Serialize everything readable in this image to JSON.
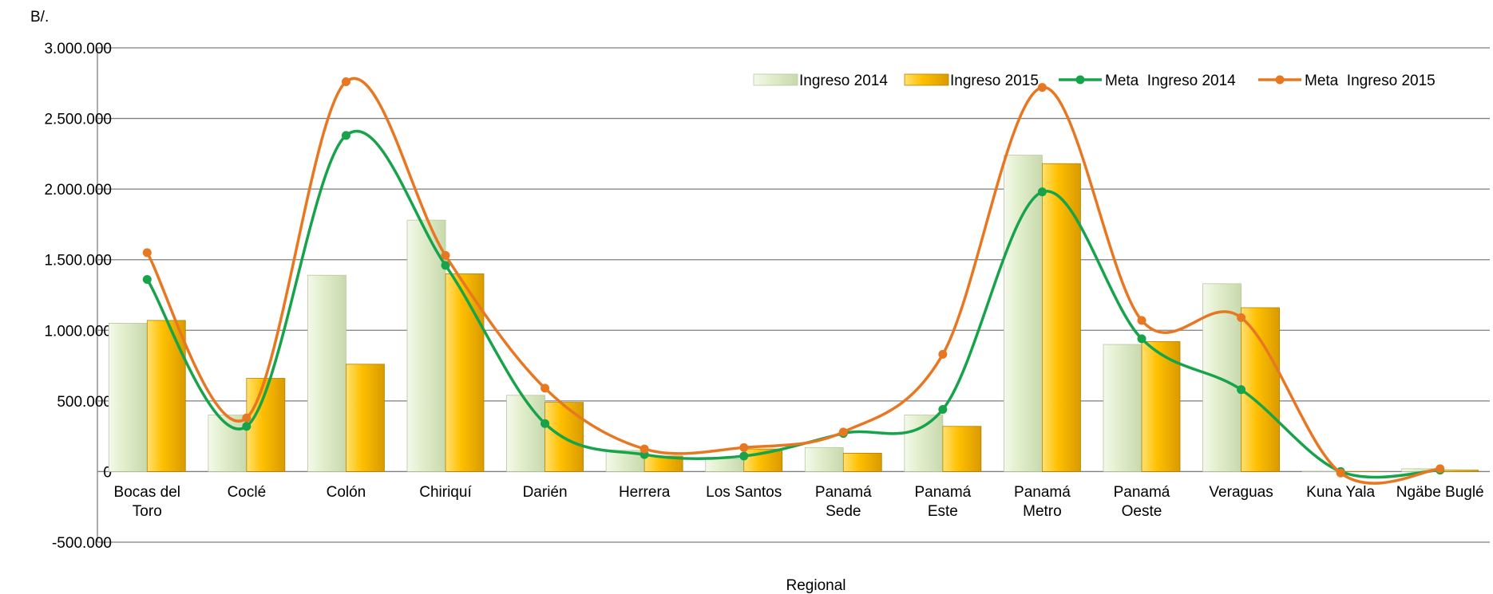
{
  "chart_data": {
    "type": "bar",
    "ylabel": "B/.",
    "xlabel": "Regional",
    "ylim": [
      -500000,
      3000000
    ],
    "yticks": [
      -500000,
      0,
      500000,
      1000000,
      1500000,
      2000000,
      2500000,
      3000000
    ],
    "ytick_labels": [
      "-500.000",
      "0",
      "500.000",
      "1.000.000",
      "1.500.000",
      "2.000.000",
      "2.500.000",
      "3.000.000"
    ],
    "grid": true,
    "legend_position": "top-right",
    "categories": [
      [
        "Bocas del",
        "Toro"
      ],
      [
        "Coclé"
      ],
      [
        "Colón"
      ],
      [
        "Chiriquí"
      ],
      [
        "Darién"
      ],
      [
        "Herrera"
      ],
      [
        "Los Santos"
      ],
      [
        "Panamá",
        "Sede"
      ],
      [
        "Panamá",
        "Este"
      ],
      [
        "Panamá",
        "Metro"
      ],
      [
        "Panamá",
        "Oeste"
      ],
      [
        "Veraguas"
      ],
      [
        "Kuna Yala"
      ],
      [
        "Ngäbe Buglé"
      ]
    ],
    "series": [
      {
        "name": "Ingreso 2014",
        "kind": "bar",
        "color": "#dfeccb",
        "values": [
          1050000,
          400000,
          1390000,
          1780000,
          540000,
          150000,
          90000,
          170000,
          400000,
          2240000,
          900000,
          1330000,
          0,
          20000
        ]
      },
      {
        "name": "Ingreso 2015",
        "kind": "bar",
        "color": "#ffc000",
        "values": [
          1070000,
          660000,
          760000,
          1400000,
          490000,
          110000,
          160000,
          130000,
          320000,
          2180000,
          920000,
          1160000,
          0,
          10000
        ]
      },
      {
        "name": "Meta  Ingreso 2014",
        "kind": "line",
        "color": "#16a34a",
        "values": [
          1360000,
          320000,
          2380000,
          1460000,
          340000,
          120000,
          110000,
          270000,
          440000,
          1980000,
          940000,
          580000,
          0,
          10000
        ]
      },
      {
        "name": "Meta  Ingreso 2015",
        "kind": "line",
        "color": "#e87722",
        "values": [
          1550000,
          380000,
          2760000,
          1530000,
          590000,
          160000,
          170000,
          280000,
          830000,
          2720000,
          1070000,
          1090000,
          -10000,
          20000
        ]
      }
    ]
  }
}
